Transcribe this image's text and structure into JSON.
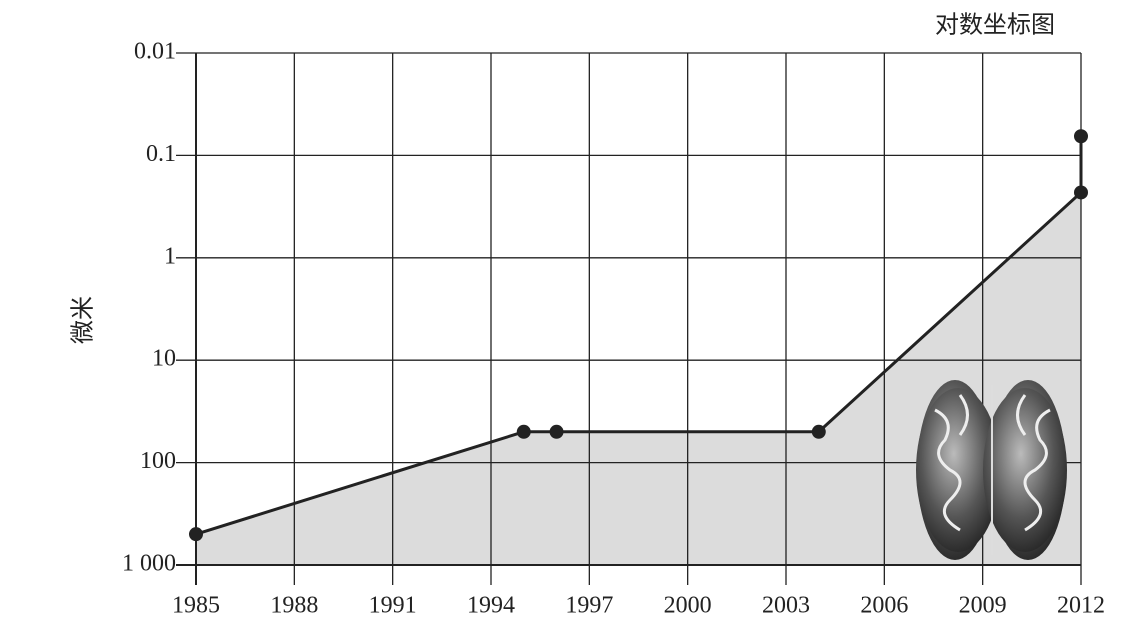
{
  "chart_data": {
    "type": "line",
    "title": "对数坐标图",
    "y_label": "微米",
    "x": [
      1985,
      1995,
      1996,
      2004,
      2012,
      2012
    ],
    "values": [
      500,
      50,
      50,
      50,
      0.23,
      0.065
    ],
    "color": "#222222",
    "fill_color": "#dcdcdc",
    "xlim": [
      1985,
      2012
    ],
    "xticks": [
      1985,
      1988,
      1991,
      1994,
      1997,
      2000,
      2003,
      2006,
      2009,
      2012
    ],
    "ylim": [
      0.01,
      1000
    ],
    "y_log_scale": true,
    "y_inverted": true,
    "yticks": [
      0.01,
      0.1,
      1,
      10,
      100,
      {
        "value": 1000,
        "label": "1 000"
      }
    ],
    "grid": true
  }
}
